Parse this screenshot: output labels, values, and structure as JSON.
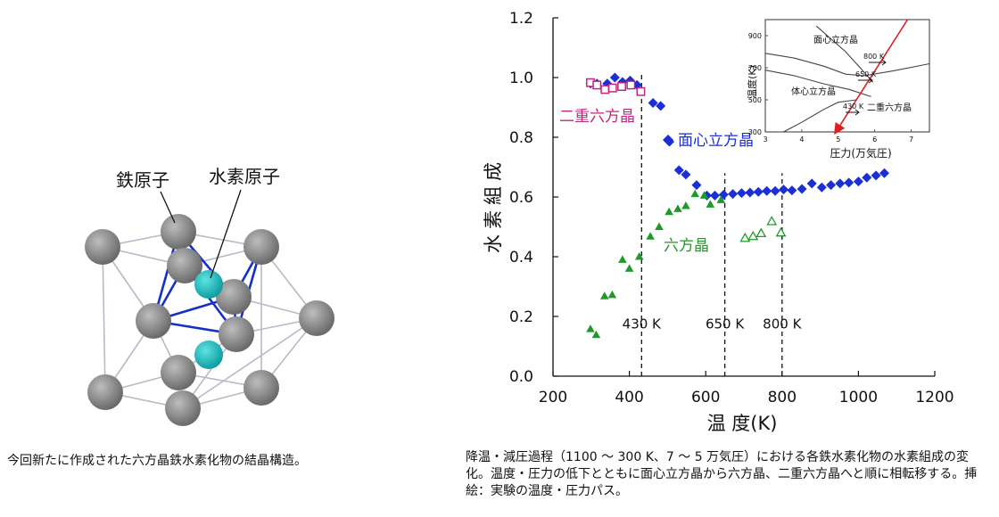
{
  "left_figure": {
    "label_iron": "鉄原子",
    "label_hydrogen": "水素原子",
    "caption": "今回新たに作成された六方晶鉄水素化物の結晶構造。"
  },
  "right_caption": "降温・減圧過程（1100 〜 300 K、7 〜 5 万気圧）における各鉄水素化物の水素組成の変化。温度・圧力の低下とともに面心立方晶から六方晶、二重六方晶へと順に相転移する。挿絵：実験の温度・圧力パス。",
  "colors": {
    "fcc": "#1a2fd6",
    "hcp": "#1f9a2a",
    "dhcp": "#c0267f",
    "path": "#e0201d",
    "atom_iron": "#8a8a8a",
    "atom_hydrogen": "#14b4b8",
    "bond": "#1530c8"
  },
  "chart_data": [
    {
      "type": "scatter",
      "title": "",
      "xlabel": "温 度(K)",
      "ylabel": "水素組成",
      "xlim": [
        200,
        1200
      ],
      "ylim": [
        0.0,
        1.2
      ],
      "xticks": [
        200,
        400,
        600,
        800,
        1000,
        1200
      ],
      "yticks": [
        0.0,
        0.2,
        0.4,
        0.6,
        0.8,
        1.0,
        1.2
      ],
      "vlines": [
        {
          "x": 432,
          "label": "430 K"
        },
        {
          "x": 650,
          "label": "650 K"
        },
        {
          "x": 800,
          "label": "800 K"
        }
      ],
      "series": [
        {
          "name": "面心立方晶",
          "marker": "diamond-filled",
          "color": "#1a2fd6",
          "points": [
            [
              298,
              0.98
            ],
            [
              315,
              0.98
            ],
            [
              342,
              0.98
            ],
            [
              362,
              1.0
            ],
            [
              382,
              0.985
            ],
            [
              402,
              0.99
            ],
            [
              420,
              0.975
            ],
            [
              462,
              0.915
            ],
            [
              482,
              0.905
            ],
            [
              505,
              0.785
            ],
            [
              530,
              0.69
            ],
            [
              548,
              0.675
            ],
            [
              576,
              0.64
            ],
            [
              603,
              0.605
            ],
            [
              624,
              0.605
            ],
            [
              647,
              0.608
            ],
            [
              671,
              0.61
            ],
            [
              694,
              0.613
            ],
            [
              716,
              0.615
            ],
            [
              738,
              0.617
            ],
            [
              760,
              0.62
            ],
            [
              782,
              0.62
            ],
            [
              804,
              0.625
            ],
            [
              826,
              0.622
            ],
            [
              852,
              0.627
            ],
            [
              878,
              0.645
            ],
            [
              904,
              0.632
            ],
            [
              928,
              0.64
            ],
            [
              952,
              0.645
            ],
            [
              975,
              0.648
            ],
            [
              1000,
              0.652
            ],
            [
              1022,
              0.665
            ],
            [
              1046,
              0.672
            ],
            [
              1068,
              0.68
            ]
          ]
        },
        {
          "name": "六方晶",
          "marker": "triangle-filled",
          "color": "#1f9a2a",
          "points": [
            [
              298,
              0.158
            ],
            [
              313,
              0.138
            ],
            [
              335,
              0.268
            ],
            [
              355,
              0.272
            ],
            [
              382,
              0.39
            ],
            [
              400,
              0.36
            ],
            [
              426,
              0.4
            ],
            [
              455,
              0.468
            ],
            [
              478,
              0.5
            ],
            [
              504,
              0.55
            ],
            [
              527,
              0.56
            ],
            [
              548,
              0.57
            ],
            [
              572,
              0.61
            ],
            [
              596,
              0.605
            ],
            [
              612,
              0.575
            ],
            [
              640,
              0.59
            ]
          ]
        },
        {
          "name": "六方晶",
          "marker": "triangle-open",
          "color": "#1f9a2a",
          "points": [
            [
              703,
              0.462
            ],
            [
              724,
              0.468
            ],
            [
              745,
              0.478
            ],
            [
              773,
              0.518
            ],
            [
              797,
              0.48
            ]
          ]
        },
        {
          "name": "二重六方晶",
          "marker": "square-open",
          "color": "#c0267f",
          "points": [
            [
              298,
              0.983
            ],
            [
              315,
              0.975
            ],
            [
              336,
              0.96
            ],
            [
              356,
              0.965
            ],
            [
              380,
              0.97
            ],
            [
              404,
              0.975
            ],
            [
              430,
              0.953
            ]
          ]
        }
      ],
      "labels": [
        "面心立方晶",
        "六方晶",
        "二重六方晶"
      ]
    },
    {
      "type": "line",
      "title": "",
      "xlabel": "圧力(万気圧)",
      "ylabel": "温度(K)",
      "xlim": [
        3,
        7.5
      ],
      "ylim": [
        300,
        1000
      ],
      "xticks": [
        3,
        4,
        5,
        6,
        7
      ],
      "yticks": [
        300,
        500,
        700,
        900
      ],
      "region_labels": [
        "面心立方晶",
        "体心立方晶",
        "二重六方晶"
      ],
      "annotations": [
        "800 K",
        "650 K",
        "430 K"
      ],
      "series": [
        {
          "name": "",
          "color": "#444444",
          "points": [
            [
              3.0,
              790
            ],
            [
              3.8,
              760
            ],
            [
              4.6,
              710
            ],
            [
              5.2,
              660
            ],
            [
              5.7,
              650
            ],
            [
              6.5,
              680
            ],
            [
              7.5,
              725
            ]
          ]
        },
        {
          "name": "",
          "color": "#444444",
          "points": [
            [
              3.0,
              685
            ],
            [
              3.8,
              650
            ],
            [
              4.6,
              600
            ],
            [
              5.3,
              565
            ],
            [
              5.9,
              520
            ]
          ]
        },
        {
          "name": "",
          "color": "#444444",
          "points": [
            [
              4.4,
              960
            ],
            [
              5.2,
              800
            ],
            [
              5.6,
              700
            ],
            [
              5.95,
              610
            ]
          ]
        },
        {
          "name": "",
          "color": "#444444",
          "points": [
            [
              3.5,
              300
            ],
            [
              4.0,
              360
            ],
            [
              4.6,
              440
            ],
            [
              5.0,
              485
            ],
            [
              5.5,
              500
            ]
          ]
        },
        {
          "name": "",
          "color": "#e0201d",
          "arrow": true,
          "points": [
            [
              6.9,
              1000
            ],
            [
              4.95,
              305
            ]
          ]
        }
      ]
    }
  ]
}
